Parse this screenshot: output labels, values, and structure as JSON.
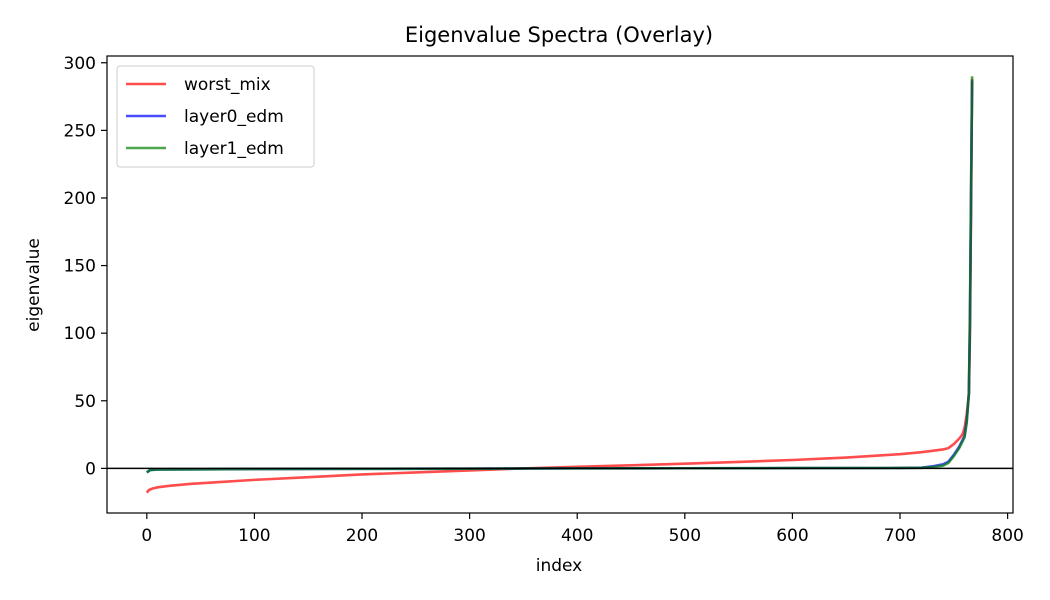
{
  "chart_data": {
    "type": "line",
    "title": "Eigenvalue Spectra (Overlay)",
    "xlabel": "index",
    "ylabel": "eigenvalue",
    "xlim": [
      -37,
      805
    ],
    "ylim": [
      -33,
      305
    ],
    "xticks": [
      0,
      100,
      200,
      300,
      400,
      500,
      600,
      700,
      800
    ],
    "yticks": [
      0,
      50,
      100,
      150,
      200,
      250,
      300
    ],
    "grid": false,
    "legend_position": "top-left",
    "hline": 0,
    "series": [
      {
        "name": "worst_mix",
        "color": "#ff0000",
        "alpha": 0.7,
        "x": [
          0,
          2,
          5,
          10,
          20,
          40,
          60,
          100,
          150,
          200,
          250,
          300,
          350,
          400,
          450,
          500,
          550,
          600,
          650,
          700,
          720,
          740,
          745,
          750,
          755,
          758,
          760,
          762,
          764,
          765,
          766,
          767
        ],
        "y": [
          -18,
          -16,
          -15,
          -14,
          -13,
          -11.5,
          -10.5,
          -8.5,
          -6.5,
          -4.5,
          -3,
          -1.5,
          0,
          1.2,
          2.3,
          3.5,
          4.8,
          6.2,
          8,
          10.5,
          12,
          14,
          15,
          18,
          22,
          25,
          30,
          40,
          55,
          100,
          190,
          288
        ]
      },
      {
        "name": "layer0_edm",
        "color": "#0000ff",
        "alpha": 0.7,
        "x": [
          0,
          3,
          10,
          100,
          200,
          300,
          400,
          500,
          600,
          700,
          720,
          730,
          740,
          745,
          750,
          755,
          760,
          762,
          764,
          765,
          766,
          767
        ],
        "y": [
          -3,
          -1.2,
          -0.8,
          -0.5,
          -0.3,
          -0.2,
          0,
          0.1,
          0.2,
          0.3,
          0.5,
          1.5,
          3,
          5,
          10,
          16,
          24,
          35,
          55,
          110,
          200,
          287
        ]
      },
      {
        "name": "layer1_edm",
        "color": "#008000",
        "alpha": 0.7,
        "x": [
          0,
          3,
          10,
          100,
          200,
          300,
          400,
          500,
          600,
          700,
          720,
          730,
          740,
          745,
          750,
          755,
          760,
          762,
          764,
          765,
          766,
          767
        ],
        "y": [
          -3,
          -1.3,
          -0.9,
          -0.5,
          -0.3,
          -0.2,
          0,
          0.1,
          0.2,
          0.3,
          0.4,
          1,
          2,
          4,
          9,
          15,
          23,
          34,
          56,
          115,
          205,
          290
        ]
      }
    ]
  }
}
